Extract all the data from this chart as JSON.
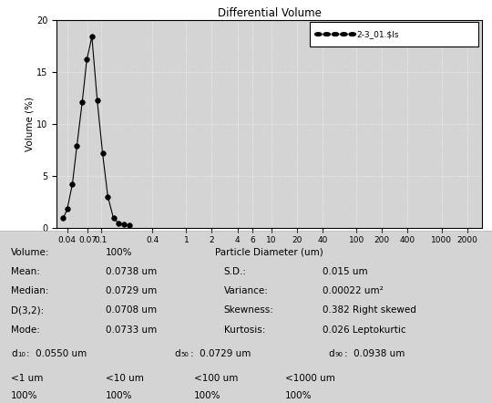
{
  "title": "Differential Volume",
  "xlabel": "Particle Diameter (um)",
  "ylabel": "Volume (%)",
  "legend_label": "2-3_01.$ls",
  "ylim": [
    0,
    20
  ],
  "yticks": [
    0,
    5,
    10,
    15,
    20
  ],
  "xtick_labels": [
    "0.04",
    "0.07",
    "0.1",
    "0.4",
    "1",
    "2",
    "4",
    "6",
    "10",
    "20",
    "40",
    "100",
    "200",
    "400",
    "1000",
    "2000"
  ],
  "xtick_values": [
    0.04,
    0.07,
    0.1,
    0.4,
    1,
    2,
    4,
    6,
    10,
    20,
    40,
    100,
    200,
    400,
    1000,
    2000
  ],
  "x_data": [
    0.036,
    0.04,
    0.046,
    0.052,
    0.06,
    0.068,
    0.078,
    0.09,
    0.104,
    0.12,
    0.14,
    0.16,
    0.185,
    0.215
  ],
  "y_data": [
    0.9,
    1.8,
    4.2,
    7.9,
    12.1,
    16.2,
    18.4,
    12.3,
    7.2,
    3.0,
    0.9,
    0.45,
    0.3,
    0.2
  ],
  "line_color": "#000000",
  "marker_size": 4,
  "plot_bg_color": "#d4d4d4",
  "stats_bg_color": "#d4d4d4",
  "stats": {
    "Volume": "100%",
    "Mean": "0.0738 um",
    "Median": "0.0729 um",
    "D32": "0.0708 um",
    "Mode": "0.0733 um",
    "SD": "0.015 um",
    "Variance": "0.00022 um²",
    "Skewness": "0.382 Right skewed",
    "Kurtosis": "0.026 Leptokurtic",
    "d10": "0.0550 um",
    "d50": "0.0729 um",
    "d90": "0.0938 um",
    "lt1": "100%",
    "lt10": "100%",
    "lt100": "100%",
    "lt1000": "100%"
  }
}
